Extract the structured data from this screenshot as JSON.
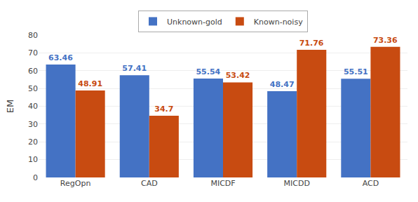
{
  "chart_data": {
    "type": "bar",
    "categories": [
      "RegOpn",
      "CAD",
      "MICDF",
      "MICDD",
      "ACD"
    ],
    "series": [
      {
        "name": "Unknown-gold",
        "color": "#4472C4",
        "values": [
          63.46,
          57.41,
          55.54,
          48.47,
          55.51
        ]
      },
      {
        "name": "Known-noisy",
        "color": "#C84B11",
        "values": [
          48.91,
          34.7,
          53.42,
          71.76,
          73.36
        ]
      }
    ],
    "ylabel": "EM",
    "ylim": [
      0,
      80
    ],
    "yticks": [
      0,
      10,
      20,
      30,
      40,
      50,
      60,
      70,
      80
    ],
    "grid": true,
    "legend": "top",
    "data_labels": true
  }
}
